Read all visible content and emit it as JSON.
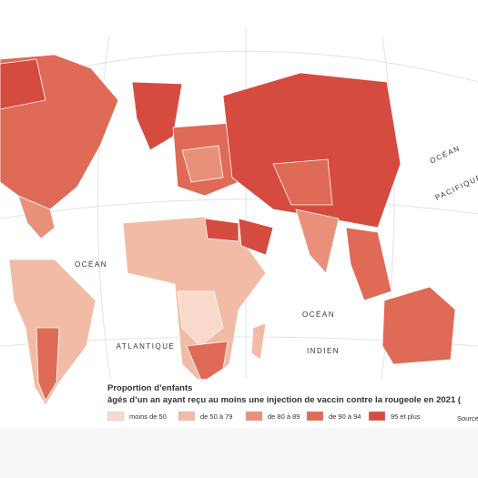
{
  "map": {
    "ocean_labels": [
      {
        "text": "OCÉAN",
        "id": "atl1"
      },
      {
        "text": "ATLANTIQUE",
        "id": "atl2"
      },
      {
        "text": "OCÉAN",
        "id": "ind1"
      },
      {
        "text": "INDIEN",
        "id": "ind2"
      },
      {
        "text": "OCÉAN",
        "id": "pac1"
      },
      {
        "text": "PACIFIQUE",
        "id": "pac2"
      }
    ]
  },
  "legend": {
    "title": [
      "Proportion d’enfants",
      "âgés d’un an ayant reçu au moins une injection de vaccin contre la rougeole en 2021 ("
    ],
    "items": [
      {
        "label": "moins de 50",
        "color": "#f8d9cc"
      },
      {
        "label": "de 50 à 79",
        "color": "#f2bba5"
      },
      {
        "label": "de 80 à 89",
        "color": "#e9907a"
      },
      {
        "label": "de 90 à 94",
        "color": "#df6a55"
      },
      {
        "label": "95 et plus",
        "color": "#d64b3f"
      }
    ]
  },
  "source": "Source"
}
